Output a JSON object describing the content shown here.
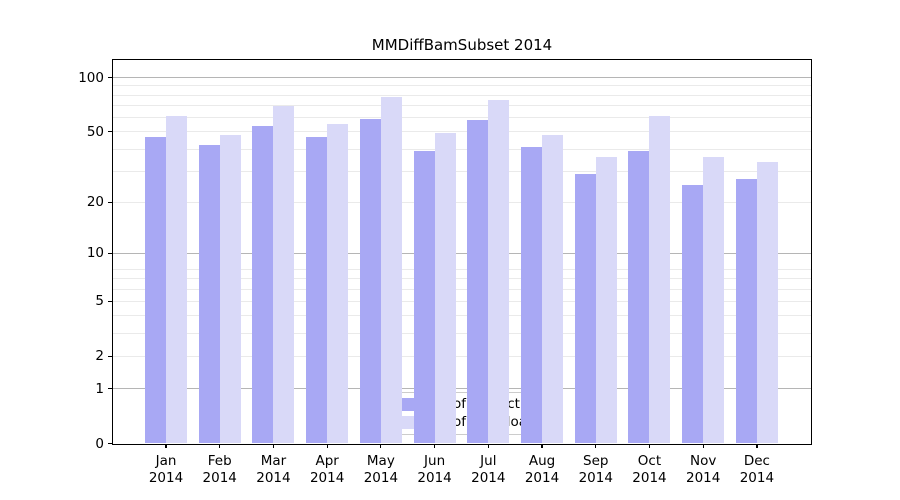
{
  "chart_data": {
    "type": "bar",
    "title": "MMDiffBamSubset 2014",
    "months": [
      "Jan",
      "Feb",
      "Mar",
      "Apr",
      "May",
      "Jun",
      "Jul",
      "Aug",
      "Sep",
      "Oct",
      "Nov",
      "Dec"
    ],
    "year": "2014",
    "series": [
      {
        "name": "Nb of distinct IPs",
        "color": "#a8a8f4",
        "values": [
          47,
          42,
          54,
          47,
          59,
          39,
          58,
          41,
          29,
          39,
          25,
          27
        ]
      },
      {
        "name": "Nb of downloads",
        "color": "#d9d9f8",
        "values": [
          61,
          48,
          70,
          55,
          78,
          49,
          75,
          48,
          36,
          61,
          36,
          34
        ]
      }
    ],
    "yscale": "log10(1+y)",
    "y_ticks": [
      0,
      1,
      2,
      5,
      10,
      20,
      50,
      100
    ],
    "ylim": [
      0,
      126
    ],
    "grid": {
      "major_at": [
        1,
        10,
        100
      ],
      "minor_at": [
        2,
        3,
        4,
        5,
        6,
        7,
        8,
        20,
        30,
        40,
        50,
        60,
        70,
        80,
        90
      ]
    },
    "legend_position": "lower center"
  },
  "colors": {
    "major_grid": "#b5b5b5",
    "minor_grid": "#eaeaea",
    "spine": "#000000",
    "text": "#000000",
    "legend_border": "#cccccc",
    "background": "#ffffff"
  }
}
